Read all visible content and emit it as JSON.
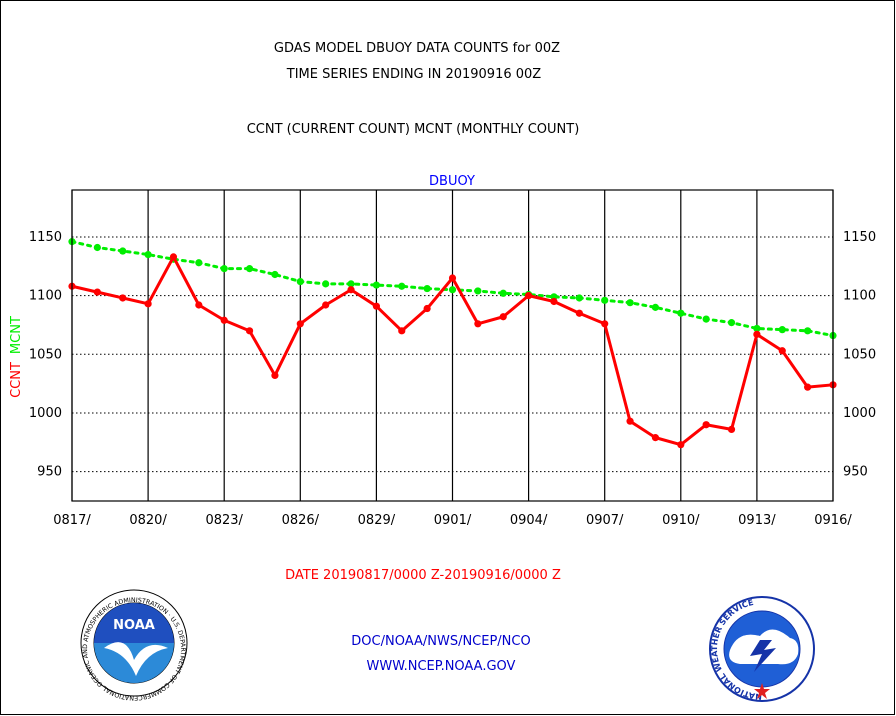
{
  "header": {
    "title_line1": "GDAS MODEL DBUOY DATA COUNTS for 00Z",
    "title_line2": "TIME SERIES ENDING IN 20190916 00Z",
    "subtitle": "CCNT (CURRENT COUNT) MCNT (MONTHLY COUNT)"
  },
  "footer": {
    "date_range": "DATE 20190817/0000 Z-20190916/0000 Z",
    "org_path": "DOC/NOAA/NWS/NCEP/NCO",
    "website": "WWW.NCEP.NOAA.GOV"
  },
  "logos": {
    "noaa": {
      "text": "NOAA",
      "ring_text": "NATIONAL OCEANIC AND ATMOSPHERIC ADMINISTRATION · U.S. DEPARTMENT OF COMMERCE"
    },
    "nws": {
      "ring_text": "NATIONAL WEATHER SERVICE"
    }
  },
  "colors": {
    "ccnt": "#ff0000",
    "mcnt": "#00ee00",
    "panel_label": "#0000ff",
    "footer_text": "#0000cc"
  },
  "chart_data": {
    "type": "line",
    "title": "DBUOY",
    "ylabel_parts": [
      "CCNT",
      "MCNT"
    ],
    "ylim": [
      925,
      1190
    ],
    "yticks": [
      950,
      1000,
      1050,
      1100,
      1150
    ],
    "xlim": [
      0,
      30
    ],
    "xticks": [
      0,
      3,
      6,
      9,
      12,
      15,
      18,
      21,
      24,
      27,
      30
    ],
    "xtick_labels": [
      "0817/",
      "0820/",
      "0823/",
      "0826/",
      "0829/",
      "0901/",
      "0904/",
      "0907/",
      "0910/",
      "0913/",
      "0916/"
    ],
    "grid": true,
    "series": [
      {
        "name": "CCNT",
        "x": [
          0,
          1,
          2,
          3,
          4,
          5,
          6,
          7,
          8,
          9,
          10,
          11,
          12,
          13,
          14,
          15,
          16,
          17,
          18,
          19,
          20,
          21,
          22,
          23,
          24,
          25,
          26,
          27,
          28,
          29,
          30
        ],
        "values": [
          1108,
          1103,
          1098,
          1093,
          1133,
          1092,
          1079,
          1070,
          1032,
          1076,
          1092,
          1105,
          1091,
          1070,
          1089,
          1115,
          1076,
          1082,
          1100,
          1095,
          1085,
          1076,
          993,
          979,
          973,
          990,
          986,
          1067,
          1053,
          1022,
          1024
        ]
      },
      {
        "name": "MCNT",
        "x": [
          0,
          1,
          2,
          3,
          4,
          5,
          6,
          7,
          8,
          9,
          10,
          11,
          12,
          13,
          14,
          15,
          16,
          17,
          18,
          19,
          20,
          21,
          22,
          23,
          24,
          25,
          26,
          27,
          28,
          29,
          30
        ],
        "values": [
          1146,
          1141,
          1138,
          1135,
          1131,
          1128,
          1123,
          1123,
          1118,
          1112,
          1110,
          1110,
          1109,
          1108,
          1106,
          1105,
          1104,
          1102,
          1101,
          1099,
          1098,
          1096,
          1094,
          1090,
          1085,
          1080,
          1077,
          1072,
          1071,
          1070,
          1066
        ]
      }
    ]
  }
}
